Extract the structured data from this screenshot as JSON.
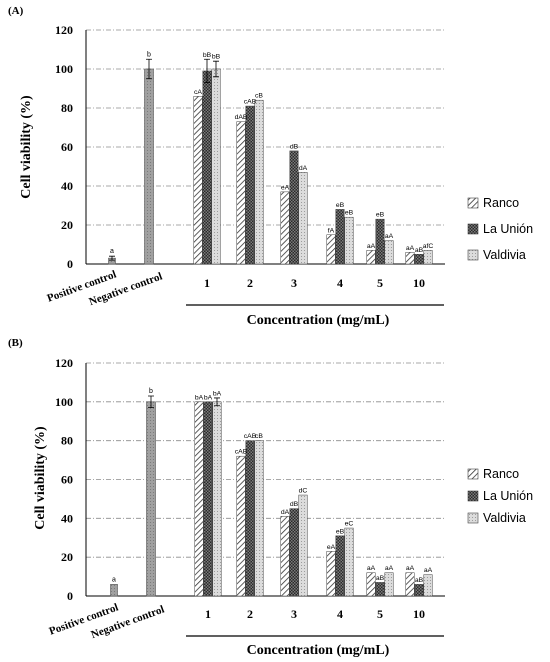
{
  "chart_data": [
    {
      "panel_label": "(A)",
      "type": "bar",
      "ylabel": "Cell viability (%)",
      "xlabel": "Concentration (mg/mL)",
      "ylim": [
        0,
        120
      ],
      "yticks": [
        0,
        20,
        40,
        60,
        80,
        100,
        120
      ],
      "grid": true,
      "legend_position": "right",
      "controls": [
        {
          "name": "Positive control",
          "value": 3,
          "error": 1,
          "label": "a"
        },
        {
          "name": "Negative control",
          "value": 100,
          "error": 5,
          "label": "b"
        }
      ],
      "categories": [
        "1",
        "2",
        "3",
        "4",
        "5",
        "10"
      ],
      "series": [
        {
          "name": "Ranco",
          "values": [
            86,
            73,
            37,
            15,
            7,
            6
          ],
          "errors": [
            0,
            0,
            0,
            0,
            0,
            0
          ],
          "labels": [
            "cA",
            "dAB",
            "eA",
            "fA",
            "aA",
            "aA"
          ]
        },
        {
          "name": "La Unión",
          "values": [
            99,
            81,
            58,
            28,
            23,
            5
          ],
          "errors": [
            6,
            0,
            0,
            0,
            0,
            0
          ],
          "labels": [
            "bB",
            "cAB",
            "dB",
            "eB",
            "eB",
            "aB"
          ]
        },
        {
          "name": "Valdivia",
          "values": [
            100,
            84,
            47,
            24,
            12,
            7
          ],
          "errors": [
            4,
            0,
            0,
            0,
            0,
            0
          ],
          "labels": [
            "bB",
            "cB",
            "dA",
            "eB",
            "aA",
            "afC"
          ]
        }
      ]
    },
    {
      "panel_label": "(B)",
      "type": "bar",
      "ylabel": "Cell viability (%)",
      "xlabel": "Concentration (mg/mL)",
      "ylim": [
        0,
        120
      ],
      "yticks": [
        0,
        20,
        40,
        60,
        80,
        100,
        120
      ],
      "grid": true,
      "legend_position": "right",
      "controls": [
        {
          "name": "Positive control",
          "value": 6,
          "error": 0,
          "label": "a"
        },
        {
          "name": "Negative control",
          "value": 100,
          "error": 3,
          "label": "b"
        }
      ],
      "categories": [
        "1",
        "2",
        "3",
        "4",
        "5",
        "10"
      ],
      "series": [
        {
          "name": "Ranco",
          "values": [
            100,
            72,
            41,
            23,
            12,
            12
          ],
          "errors": [
            0,
            0,
            0,
            0,
            0,
            0
          ],
          "labels": [
            "bA",
            "cAB",
            "dA",
            "eA",
            "aA",
            "aA"
          ]
        },
        {
          "name": "La Unión",
          "values": [
            100,
            80,
            45,
            31,
            7,
            6
          ],
          "errors": [
            0,
            0,
            0,
            0,
            0,
            0
          ],
          "labels": [
            "bA",
            "cAB",
            "dB",
            "eB",
            "aB",
            "aB"
          ]
        },
        {
          "name": "Valdivia",
          "values": [
            100,
            80,
            52,
            35,
            12,
            11
          ],
          "errors": [
            2,
            0,
            0,
            0,
            0,
            0
          ],
          "labels": [
            "bA",
            "cB",
            "dC",
            "eC",
            "aA",
            "aA"
          ]
        }
      ]
    }
  ],
  "colors": {
    "ranco": "#ffffff",
    "la_union": "#3a3a3a",
    "valdivia": "#d6d6d6",
    "control": "#9a9a9a",
    "grid": "#909090",
    "text": "#000000"
  }
}
